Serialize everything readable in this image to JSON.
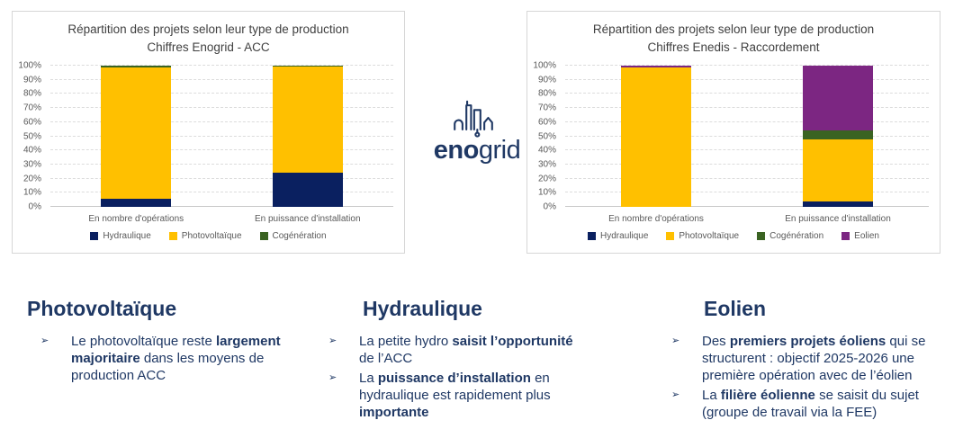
{
  "logo": {
    "bold_part": "eno",
    "light_part": "grid"
  },
  "bullet_marker": "➢",
  "colors": {
    "hydraulique": "#0a2060",
    "photovoltaique": "#ffc000",
    "cogeneration": "#3a6322",
    "eolien": "#7c2682",
    "text_navy": "#1f3864",
    "chart_title_gray": "#404040",
    "axis_gray": "#595959"
  },
  "chart_data": [
    {
      "type": "bar",
      "stacked": true,
      "title_lines": [
        "Répartition des projets selon leur type de production",
        "Chiffres Enogrid - ACC"
      ],
      "categories": [
        "En nombre d'opérations",
        "En puissance d'installation"
      ],
      "series": [
        {
          "name": "Hydraulique",
          "color": "#0a2060",
          "values": [
            6,
            24
          ]
        },
        {
          "name": "Photovoltaïque",
          "color": "#ffc000",
          "values": [
            93,
            75.5
          ]
        },
        {
          "name": "Cogénération",
          "color": "#3a6322",
          "values": [
            1,
            0.5
          ]
        }
      ],
      "ylim": [
        0,
        100
      ],
      "ytick_step": 10,
      "ytick_suffix": "%",
      "grid": true,
      "legend_position": "bottom"
    },
    {
      "type": "bar",
      "stacked": true,
      "title_lines": [
        "Répartition des projets selon leur type de production",
        "Chiffres Enedis - Raccordement"
      ],
      "categories": [
        "En nombre d'opérations",
        "En puissance d'installation"
      ],
      "series": [
        {
          "name": "Hydraulique",
          "color": "#0a2060",
          "values": [
            0,
            4
          ]
        },
        {
          "name": "Photovoltaïque",
          "color": "#ffc000",
          "values": [
            99,
            44
          ]
        },
        {
          "name": "Cogénération",
          "color": "#3a6322",
          "values": [
            0,
            6
          ]
        },
        {
          "name": "Eolien",
          "color": "#7c2682",
          "values": [
            1,
            46
          ]
        }
      ],
      "ylim": [
        0,
        100
      ],
      "ytick_step": 10,
      "ytick_suffix": "%",
      "grid": true,
      "legend_position": "bottom"
    }
  ],
  "sections": [
    {
      "title": "Photovoltaïque",
      "bullets": [
        {
          "runs": [
            {
              "t": "Le photovoltaïque reste "
            },
            {
              "t": "largement majoritaire",
              "b": true
            },
            {
              "t": " dans les moyens de production ACC"
            }
          ]
        }
      ]
    },
    {
      "title": "Hydraulique",
      "bullets": [
        {
          "runs": [
            {
              "t": "La petite hydro "
            },
            {
              "t": "saisit l’opportunité",
              "b": true
            },
            {
              "t": " de l’ACC"
            }
          ]
        },
        {
          "runs": [
            {
              "t": "La "
            },
            {
              "t": "puissance d’installation",
              "b": true
            },
            {
              "t": " en hydraulique est rapidement plus "
            },
            {
              "t": "importante",
              "b": true
            }
          ]
        }
      ]
    },
    {
      "title": "Eolien",
      "bullets": [
        {
          "runs": [
            {
              "t": "Des "
            },
            {
              "t": "premiers projets éoliens",
              "b": true
            },
            {
              "t": " qui se structurent : objectif 2025-2026 une première opération avec de l’éolien"
            }
          ]
        },
        {
          "runs": [
            {
              "t": "La "
            },
            {
              "t": "filière éolienne",
              "b": true
            },
            {
              "t": " se saisit du sujet (groupe de travail via la FEE)"
            }
          ]
        }
      ]
    }
  ]
}
